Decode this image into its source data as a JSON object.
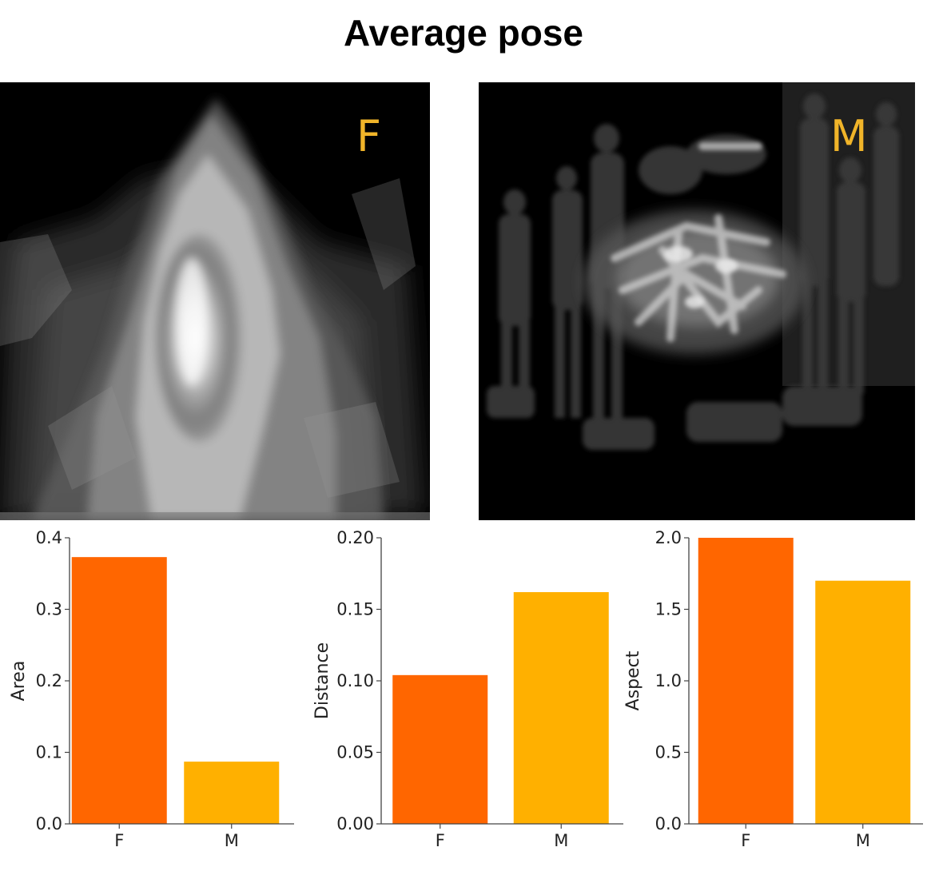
{
  "title": "Average pose",
  "images": {
    "female_label": "F",
    "male_label": "M",
    "label_color": "#f0b429"
  },
  "chart_data": [
    {
      "type": "bar",
      "categories": [
        "F",
        "M"
      ],
      "values": [
        0.373,
        0.087
      ],
      "colors": [
        "#ff6600",
        "#ffb000"
      ],
      "title": "",
      "xlabel": "",
      "ylabel": "Area",
      "ylim": [
        0,
        0.4
      ],
      "yticks": [
        0.0,
        0.1,
        0.2,
        0.3,
        0.4
      ],
      "ytick_labels": [
        "0.0",
        "0.1",
        "0.2",
        "0.3",
        "0.4"
      ],
      "grid": false
    },
    {
      "type": "bar",
      "categories": [
        "F",
        "M"
      ],
      "values": [
        0.104,
        0.162
      ],
      "colors": [
        "#ff6600",
        "#ffb000"
      ],
      "title": "",
      "xlabel": "",
      "ylabel": "Distance",
      "ylim": [
        0,
        0.2
      ],
      "yticks": [
        0.0,
        0.05,
        0.1,
        0.15,
        0.2
      ],
      "ytick_labels": [
        "0.00",
        "0.05",
        "0.10",
        "0.15",
        "0.20"
      ],
      "grid": false
    },
    {
      "type": "bar",
      "categories": [
        "F",
        "M"
      ],
      "values": [
        2.0,
        1.7
      ],
      "colors": [
        "#ff6600",
        "#ffb000"
      ],
      "title": "",
      "xlabel": "",
      "ylabel": "Aspect",
      "ylim": [
        0,
        2.0
      ],
      "yticks": [
        0.0,
        0.5,
        1.0,
        1.5,
        2.0
      ],
      "ytick_labels": [
        "0.0",
        "0.5",
        "1.0",
        "1.5",
        "2.0"
      ],
      "grid": false
    }
  ]
}
